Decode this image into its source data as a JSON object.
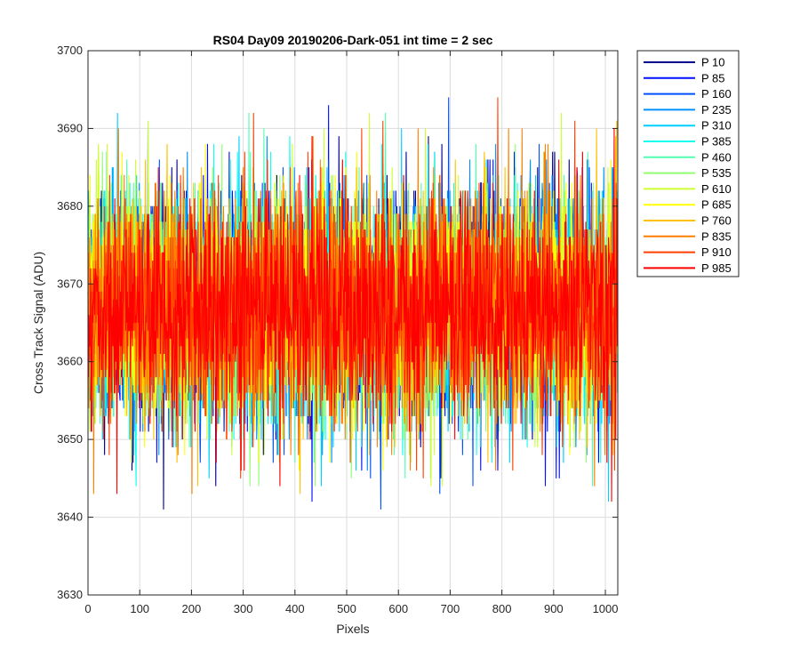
{
  "chart_data": {
    "type": "line",
    "title": "RS04 Day09 20190206-Dark-051 int time = 2 sec",
    "xlabel": "Pixels",
    "ylabel": "Cross Track Signal (ADU)",
    "xlim": [
      0,
      1024
    ],
    "ylim": [
      3630,
      3700
    ],
    "xticks": [
      "0",
      "100",
      "200",
      "300",
      "400",
      "500",
      "600",
      "700",
      "800",
      "900",
      "1000"
    ],
    "yticks": [
      "3630",
      "3640",
      "3650",
      "3660",
      "3670",
      "3680",
      "3690",
      "3700"
    ],
    "grid": true,
    "legend_position": "outside-top-right",
    "noise_model": {
      "points": 1024,
      "mean": 3667,
      "std": 7.5,
      "min": 3637,
      "max": 3699
    },
    "series": [
      {
        "name": "P 10",
        "color": "#00008f"
      },
      {
        "name": "P 85",
        "color": "#0010ff"
      },
      {
        "name": "P 160",
        "color": "#0050ff"
      },
      {
        "name": "P 235",
        "color": "#0090ff"
      },
      {
        "name": "P 310",
        "color": "#00cfff"
      },
      {
        "name": "P 385",
        "color": "#10ffef"
      },
      {
        "name": "P 460",
        "color": "#50ffaf"
      },
      {
        "name": "P 535",
        "color": "#90ff6f"
      },
      {
        "name": "P 610",
        "color": "#cfff30"
      },
      {
        "name": "P 685",
        "color": "#ffff00"
      },
      {
        "name": "P 760",
        "color": "#ffc000"
      },
      {
        "name": "P 835",
        "color": "#ff8000"
      },
      {
        "name": "P 910",
        "color": "#ff4000"
      },
      {
        "name": "P 985",
        "color": "#ff0000"
      }
    ]
  }
}
